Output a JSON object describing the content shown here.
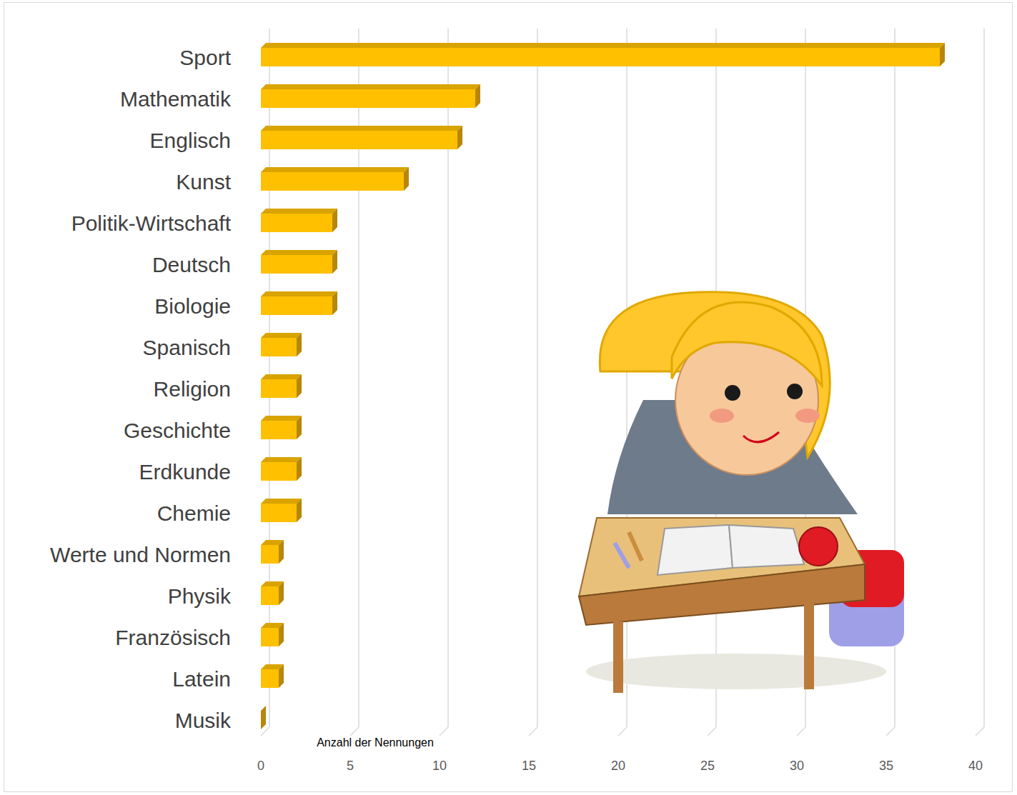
{
  "chart_data": {
    "type": "bar",
    "orientation": "horizontal",
    "categories": [
      "Sport",
      "Mathematik",
      "Englisch",
      "Kunst",
      "Politik-Wirtschaft",
      "Deutsch",
      "Biologie",
      "Spanisch",
      "Religion",
      "Geschichte",
      "Erdkunde",
      "Chemie",
      "Werte und Normen",
      "Physik",
      "Französisch",
      "Latein",
      "Musik"
    ],
    "values": [
      38,
      12,
      11,
      8,
      4,
      4,
      4,
      2,
      2,
      2,
      2,
      2,
      1,
      1,
      1,
      1,
      0
    ],
    "color": "#ffc000",
    "xlabel": "Anzahl der Nennungen",
    "xlim": [
      0,
      40
    ],
    "xticks": [
      0,
      5,
      10,
      15,
      20,
      25,
      30,
      35,
      40
    ],
    "grid": true
  }
}
